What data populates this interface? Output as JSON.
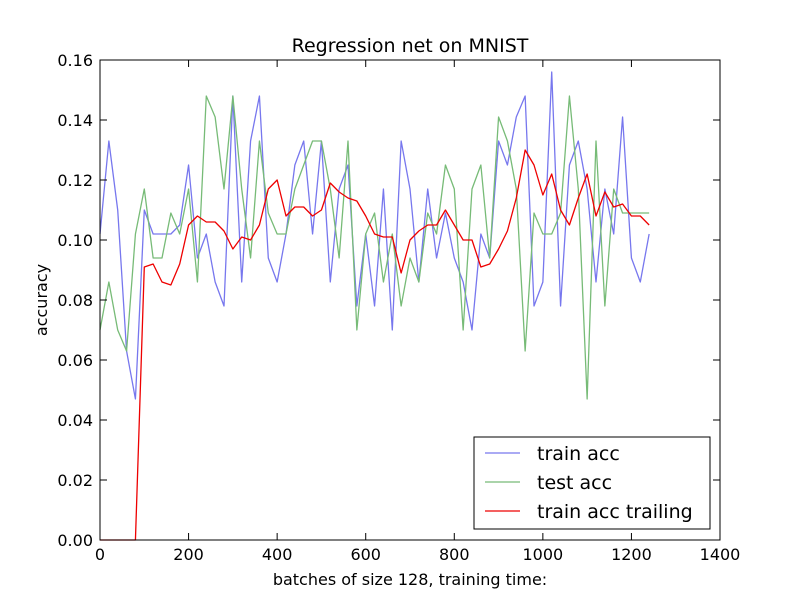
{
  "chart_data": {
    "type": "line",
    "title": "Regression net on MNIST",
    "xlabel": "batches of size 128, training time:",
    "ylabel": "accuracy",
    "xlim": [
      0,
      1400
    ],
    "ylim": [
      0,
      0.16
    ],
    "xticks": [
      "0",
      "200",
      "400",
      "600",
      "800",
      "1000",
      "1200",
      "1400"
    ],
    "yticks": [
      "0.00",
      "0.02",
      "0.04",
      "0.06",
      "0.08",
      "0.10",
      "0.12",
      "0.14",
      "0.16"
    ],
    "grid": false,
    "legend_position": "lower-right",
    "x": [
      0,
      20,
      40,
      60,
      80,
      100,
      120,
      140,
      160,
      180,
      200,
      220,
      240,
      260,
      280,
      300,
      320,
      340,
      360,
      380,
      400,
      420,
      440,
      460,
      480,
      500,
      520,
      540,
      560,
      580,
      600,
      620,
      640,
      660,
      680,
      700,
      720,
      740,
      760,
      780,
      800,
      820,
      840,
      860,
      880,
      900,
      920,
      940,
      960,
      980,
      1000,
      1020,
      1040,
      1060,
      1080,
      1100,
      1120,
      1140,
      1160,
      1180,
      1200,
      1220,
      1240
    ],
    "series": [
      {
        "name": "train acc",
        "color": "#7777ee",
        "values": [
          0.102,
          0.133,
          0.11,
          0.063,
          0.047,
          0.11,
          0.102,
          0.102,
          0.102,
          0.105,
          0.125,
          0.094,
          0.102,
          0.086,
          0.078,
          0.148,
          0.086,
          0.133,
          0.148,
          0.094,
          0.086,
          0.102,
          0.125,
          0.133,
          0.102,
          0.133,
          0.086,
          0.117,
          0.125,
          0.078,
          0.102,
          0.078,
          0.117,
          0.07,
          0.133,
          0.117,
          0.086,
          0.117,
          0.094,
          0.109,
          0.094,
          0.086,
          0.07,
          0.102,
          0.094,
          0.133,
          0.125,
          0.141,
          0.148,
          0.078,
          0.086,
          0.156,
          0.078,
          0.125,
          0.133,
          0.117,
          0.086,
          0.117,
          0.102,
          0.141,
          0.094,
          0.086,
          0.102
        ]
      },
      {
        "name": "test acc",
        "color": "#77bb77",
        "values": [
          0.07,
          0.086,
          0.07,
          0.063,
          0.102,
          0.117,
          0.094,
          0.094,
          0.109,
          0.102,
          0.117,
          0.086,
          0.148,
          0.141,
          0.117,
          0.148,
          0.117,
          0.094,
          0.133,
          0.109,
          0.102,
          0.102,
          0.117,
          0.125,
          0.133,
          0.133,
          0.117,
          0.094,
          0.133,
          0.07,
          0.102,
          0.109,
          0.086,
          0.102,
          0.078,
          0.094,
          0.086,
          0.109,
          0.102,
          0.125,
          0.117,
          0.07,
          0.117,
          0.125,
          0.094,
          0.141,
          0.133,
          0.117,
          0.063,
          0.109,
          0.102,
          0.102,
          0.109,
          0.148,
          0.117,
          0.047,
          0.133,
          0.078,
          0.117,
          0.109,
          0.109,
          0.109,
          0.109
        ]
      },
      {
        "name": "train acc trailing",
        "color": "#ee0000",
        "values": [
          0.0,
          0.0,
          0.0,
          0.0,
          0.0,
          0.091,
          0.092,
          0.086,
          0.085,
          0.092,
          0.105,
          0.108,
          0.106,
          0.106,
          0.103,
          0.097,
          0.101,
          0.1,
          0.105,
          0.117,
          0.12,
          0.108,
          0.111,
          0.111,
          0.108,
          0.11,
          0.119,
          0.116,
          0.114,
          0.113,
          0.108,
          0.102,
          0.101,
          0.101,
          0.089,
          0.1,
          0.103,
          0.105,
          0.105,
          0.11,
          0.105,
          0.1,
          0.1,
          0.091,
          0.092,
          0.097,
          0.103,
          0.114,
          0.13,
          0.125,
          0.115,
          0.122,
          0.11,
          0.105,
          0.114,
          0.122,
          0.108,
          0.116,
          0.111,
          0.112,
          0.108,
          0.108,
          0.105
        ]
      }
    ]
  }
}
